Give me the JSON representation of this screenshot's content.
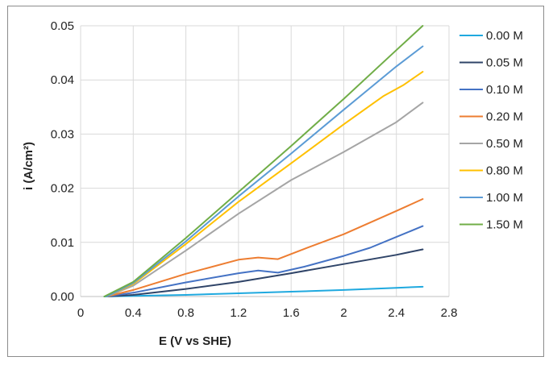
{
  "chart_data": {
    "type": "line",
    "title": "",
    "xlabel": "E (V vs SHE)",
    "ylabel": "i (A/cm²)",
    "xlim": [
      0,
      2.8
    ],
    "ylim": [
      0,
      0.05
    ],
    "xticks": [
      0,
      0.4,
      0.8,
      1.2,
      1.6,
      2,
      2.4,
      2.8
    ],
    "xtick_labels": [
      "0",
      "0.4",
      "0.8",
      "1.2",
      "1.6",
      "2",
      "2.4",
      "2.8"
    ],
    "yticks": [
      0,
      0.01,
      0.02,
      0.03,
      0.04,
      0.05
    ],
    "ytick_labels": [
      "0.00",
      "0.01",
      "0.02",
      "0.03",
      "0.04",
      "0.05"
    ],
    "grid": true,
    "legend_position": "right",
    "series": [
      {
        "name": "0.00 M",
        "color": "#1fa9df",
        "x": [
          0.18,
          0.4,
          0.8,
          1.2,
          1.6,
          2.0,
          2.4,
          2.6
        ],
        "y": [
          0,
          0.0001,
          0.0003,
          0.0006,
          0.0009,
          0.0012,
          0.0016,
          0.0018
        ]
      },
      {
        "name": "0.05 M",
        "color": "#2f4468",
        "x": [
          0.2,
          0.4,
          0.8,
          1.2,
          1.6,
          2.0,
          2.4,
          2.6
        ],
        "y": [
          0,
          0.0003,
          0.0014,
          0.0027,
          0.0043,
          0.006,
          0.0077,
          0.0087
        ]
      },
      {
        "name": "0.10 M",
        "color": "#4472c4",
        "x": [
          0.2,
          0.4,
          0.8,
          1.2,
          1.35,
          1.5,
          1.7,
          2.0,
          2.2,
          2.4,
          2.6
        ],
        "y": [
          0,
          0.0007,
          0.0026,
          0.0043,
          0.0048,
          0.0044,
          0.0055,
          0.0075,
          0.009,
          0.011,
          0.013
        ]
      },
      {
        "name": "0.20 M",
        "color": "#ed7d31",
        "x": [
          0.2,
          0.4,
          0.8,
          1.2,
          1.35,
          1.5,
          1.7,
          2.0,
          2.4,
          2.6
        ],
        "y": [
          0,
          0.0012,
          0.0042,
          0.0068,
          0.0072,
          0.0069,
          0.0088,
          0.0115,
          0.0158,
          0.018
        ]
      },
      {
        "name": "0.50 M",
        "color": "#a5a5a5",
        "x": [
          0.2,
          0.4,
          0.8,
          1.2,
          1.6,
          2.0,
          2.4,
          2.6
        ],
        "y": [
          0,
          0.002,
          0.0085,
          0.0153,
          0.0215,
          0.0267,
          0.0322,
          0.0358
        ]
      },
      {
        "name": "0.80 M",
        "color": "#ffc000",
        "x": [
          0.2,
          0.4,
          0.8,
          1.2,
          1.6,
          2.0,
          2.3,
          2.45,
          2.6
        ],
        "y": [
          0,
          0.0023,
          0.0097,
          0.0175,
          0.0246,
          0.0318,
          0.037,
          0.039,
          0.0415
        ]
      },
      {
        "name": "1.00 M",
        "color": "#5b9bd5",
        "x": [
          0.2,
          0.4,
          0.8,
          1.2,
          1.6,
          2.0,
          2.4,
          2.6
        ],
        "y": [
          0,
          0.0025,
          0.0102,
          0.0185,
          0.0264,
          0.0345,
          0.0425,
          0.0462
        ]
      },
      {
        "name": "1.50 M",
        "color": "#70ad47",
        "x": [
          0.18,
          0.4,
          0.8,
          1.2,
          1.6,
          2.0,
          2.4,
          2.6
        ],
        "y": [
          0,
          0.0027,
          0.0108,
          0.0193,
          0.0278,
          0.0365,
          0.0455,
          0.05
        ]
      }
    ]
  }
}
